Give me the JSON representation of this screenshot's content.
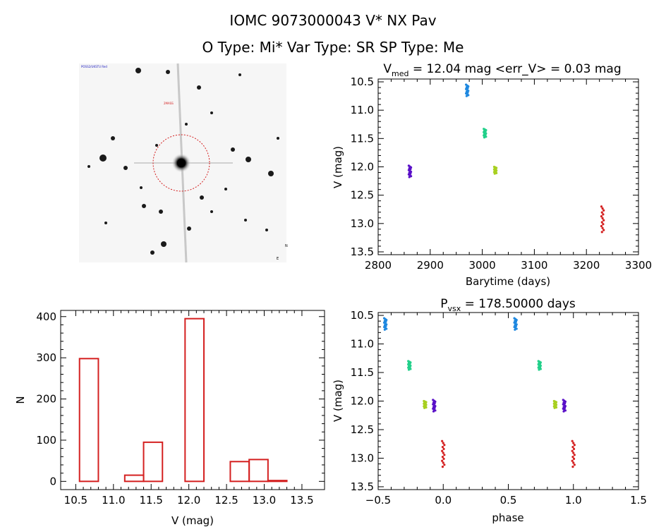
{
  "header": {
    "line1": "IOMC 9073000043    V* NX Pav",
    "line2": "O Type: Mi*   Var Type: SR   SP Type: Me"
  },
  "finder": {
    "labels": [
      "POSS2/UKSTU Red",
      "2MASS",
      "N",
      "E"
    ]
  },
  "chart_data": [
    {
      "type": "scatter",
      "title": "V_med = 12.04 mag <err_V> = 0.03 mag",
      "title_main": "V",
      "title_sub": "med",
      "title_rest": " = 12.04 mag <err_V> = 0.03 mag",
      "xlabel": "Barytime (days)",
      "ylabel": "V (mag)",
      "xlim": [
        2800,
        3300
      ],
      "ylim": [
        13.55,
        10.45
      ],
      "xticks": [
        "2800",
        "2900",
        "3000",
        "3100",
        "3200",
        "3300"
      ],
      "yticks": [
        "10.5",
        "11.0",
        "11.5",
        "12.0",
        "12.5",
        "13.0",
        "13.5"
      ],
      "groups": [
        {
          "x": 2861,
          "ymin": 11.98,
          "ymax": 12.18,
          "color": "#5a10c8"
        },
        {
          "x": 2971,
          "ymin": 10.55,
          "ymax": 10.75,
          "color": "#1e88e0"
        },
        {
          "x": 3005,
          "ymin": 11.33,
          "ymax": 11.48,
          "color": "#22d08a"
        },
        {
          "x": 3025,
          "ymin": 12.0,
          "ymax": 12.12,
          "color": "#a8d020"
        },
        {
          "x": 3231,
          "ymin": 12.7,
          "ymax": 13.15,
          "color": "#d42020"
        }
      ]
    },
    {
      "type": "scatter",
      "title": "P_vsx = 178.50000 days",
      "title_main": "P",
      "title_sub": "vsx",
      "title_rest": " = 178.50000 days",
      "xlabel": "phase",
      "ylabel": "V (mag)",
      "xlim": [
        -0.5,
        1.5
      ],
      "ylim": [
        13.55,
        10.45
      ],
      "xticks": [
        "−0.5",
        "0.0",
        "0.5",
        "1.0",
        "1.5"
      ],
      "yticks": [
        "10.5",
        "11.0",
        "11.5",
        "12.0",
        "12.5",
        "13.0",
        "13.5"
      ],
      "groups": [
        {
          "x": -0.445,
          "ymin": 10.55,
          "ymax": 10.75,
          "color": "#1e88e0"
        },
        {
          "x": -0.26,
          "ymin": 11.3,
          "ymax": 11.45,
          "color": "#22d08a"
        },
        {
          "x": -0.14,
          "ymin": 12.0,
          "ymax": 12.12,
          "color": "#a8d020"
        },
        {
          "x": -0.07,
          "ymin": 11.98,
          "ymax": 12.18,
          "color": "#5a10c8"
        },
        {
          "x": 0.0,
          "ymin": 12.7,
          "ymax": 13.15,
          "color": "#d42020"
        },
        {
          "x": 0.555,
          "ymin": 10.55,
          "ymax": 10.75,
          "color": "#1e88e0"
        },
        {
          "x": 0.74,
          "ymin": 11.3,
          "ymax": 11.45,
          "color": "#22d08a"
        },
        {
          "x": 0.86,
          "ymin": 12.0,
          "ymax": 12.12,
          "color": "#a8d020"
        },
        {
          "x": 0.93,
          "ymin": 11.98,
          "ymax": 12.18,
          "color": "#5a10c8"
        },
        {
          "x": 1.0,
          "ymin": 12.7,
          "ymax": 13.15,
          "color": "#d42020"
        }
      ]
    },
    {
      "type": "bar",
      "title": "",
      "xlabel": "V (mag)",
      "ylabel": "N",
      "xlim": [
        10.3,
        13.8
      ],
      "ylim": [
        -20,
        415
      ],
      "xticks": [
        "10.5",
        "11.0",
        "11.5",
        "12.0",
        "12.5",
        "13.0",
        "13.5"
      ],
      "yticks": [
        "0",
        "100",
        "200",
        "300",
        "400"
      ],
      "bin_width": 0.25,
      "bin_edges": [
        10.55,
        11.15,
        11.4,
        11.95,
        12.55,
        12.8,
        13.05
      ],
      "values": [
        298,
        15,
        95,
        395,
        48,
        53,
        2
      ],
      "color": "#d42020"
    }
  ]
}
